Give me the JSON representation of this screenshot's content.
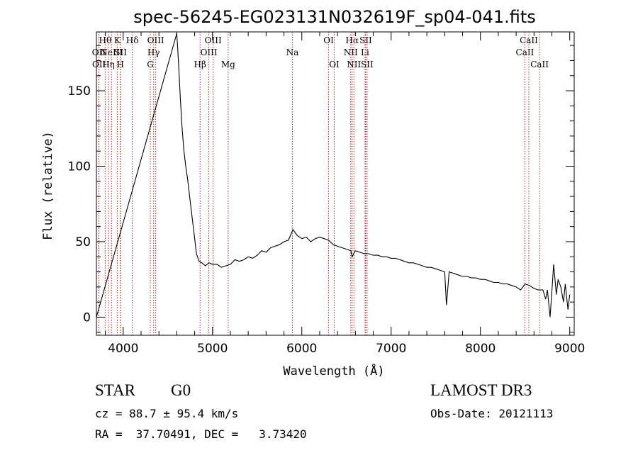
{
  "chart_data": {
    "type": "line",
    "title": "spec-56245-EG023131N032619F_sp04-041.fits",
    "xlabel": "Wavelength (Å)",
    "ylabel": "Flux (relative)",
    "xlim": [
      3700,
      9050
    ],
    "ylim": [
      -12,
      189
    ],
    "x_ticks": [
      4000,
      5000,
      6000,
      7000,
      8000,
      9000
    ],
    "y_ticks": [
      0,
      50,
      100,
      150
    ],
    "x": [
      3700,
      4600,
      4620,
      4640,
      4660,
      4680,
      4700,
      4720,
      4740,
      4760,
      4780,
      4800,
      4820,
      4850,
      4880,
      4920,
      4960,
      5000,
      5050,
      5100,
      5150,
      5200,
      5250,
      5300,
      5350,
      5400,
      5450,
      5500,
      5550,
      5600,
      5650,
      5700,
      5750,
      5800,
      5850,
      5900,
      5950,
      6000,
      6050,
      6100,
      6150,
      6200,
      6250,
      6300,
      6350,
      6400,
      6450,
      6500,
      6550,
      6563,
      6600,
      6650,
      6700,
      6750,
      6800,
      6850,
      6900,
      6950,
      7000,
      7050,
      7100,
      7150,
      7200,
      7250,
      7300,
      7350,
      7400,
      7450,
      7500,
      7550,
      7600,
      7620,
      7650,
      7700,
      7750,
      7800,
      7850,
      7900,
      7950,
      8000,
      8050,
      8100,
      8150,
      8200,
      8250,
      8300,
      8350,
      8400,
      8450,
      8500,
      8550,
      8600,
      8650,
      8700,
      8730,
      8750,
      8780,
      8800,
      8820,
      8850,
      8870,
      8900,
      8930,
      8950,
      8980,
      9000
    ],
    "values": [
      0,
      188,
      168,
      145,
      125,
      110,
      100,
      92,
      82,
      72,
      62,
      52,
      42,
      37,
      36,
      34,
      36,
      35,
      35,
      33,
      34,
      35,
      38,
      37,
      38,
      40,
      39,
      41,
      44,
      43,
      46,
      47,
      48,
      50,
      51,
      58,
      54,
      52,
      53,
      50,
      52,
      53,
      52,
      51,
      48,
      47,
      46,
      45,
      44,
      40,
      44,
      43,
      42,
      42,
      41,
      41,
      40,
      40,
      39,
      39,
      38,
      37,
      36,
      36,
      35,
      34,
      33,
      33,
      32,
      31,
      30,
      8,
      30,
      29,
      28,
      27,
      27,
      26,
      26,
      25,
      25,
      24,
      23,
      23,
      22,
      22,
      21,
      20,
      18,
      22,
      21,
      19,
      18,
      18,
      12,
      18,
      0,
      17,
      35,
      15,
      25,
      20,
      10,
      22,
      5,
      15
    ],
    "lines": [
      {
        "wavelength": 3727,
        "label": "OII",
        "row": 2
      },
      {
        "wavelength": 3729,
        "label": "OII",
        "row": 3
      },
      {
        "wavelength": 3798,
        "label": "Hθ",
        "row": 1
      },
      {
        "wavelength": 3835,
        "label": "Hη",
        "row": 3
      },
      {
        "wavelength": 3869,
        "label": "NeIII",
        "row": 2
      },
      {
        "wavelength": 3933,
        "label": "K",
        "row": 1
      },
      {
        "wavelength": 3968,
        "label": "H",
        "row": 3
      },
      {
        "wavelength": 3971,
        "label": "SII",
        "row": 2
      },
      {
        "wavelength": 4102,
        "label": "Hδ",
        "row": 1
      },
      {
        "wavelength": 4304,
        "label": "G",
        "row": 3
      },
      {
        "wavelength": 4341,
        "label": "Hγ",
        "row": 2
      },
      {
        "wavelength": 4364,
        "label": "OIII",
        "row": 1
      },
      {
        "wavelength": 4861,
        "label": "Hβ",
        "row": 3
      },
      {
        "wavelength": 4959,
        "label": "OIII",
        "row": 2
      },
      {
        "wavelength": 5007,
        "label": "OIII",
        "row": 1
      },
      {
        "wavelength": 5175,
        "label": "Mg",
        "row": 3
      },
      {
        "wavelength": 5894,
        "label": "Na",
        "row": 2
      },
      {
        "wavelength": 6300,
        "label": "OI",
        "row": 1
      },
      {
        "wavelength": 6363,
        "label": "OI",
        "row": 3
      },
      {
        "wavelength": 6548,
        "label": "NII",
        "row": 2
      },
      {
        "wavelength": 6563,
        "label": "Hα",
        "row": 1
      },
      {
        "wavelength": 6583,
        "label": "NII",
        "row": 3
      },
      {
        "wavelength": 6708,
        "label": "Li",
        "row": 2
      },
      {
        "wavelength": 6716,
        "label": "SII",
        "row": 1
      },
      {
        "wavelength": 6731,
        "label": "SII",
        "row": 3
      },
      {
        "wavelength": 8498,
        "label": "CaII",
        "row": 2
      },
      {
        "wavelength": 8542,
        "label": "CaII",
        "row": 1
      },
      {
        "wavelength": 8662,
        "label": "CaII",
        "row": 3
      }
    ],
    "grid": false,
    "line_color": "#000000",
    "marker_color": "#b22222"
  },
  "info": {
    "class": "STAR",
    "subclass": "G0",
    "survey": "LAMOST DR3",
    "cz": "cz = 88.7 ± 95.4 km/s",
    "obs_date": "Obs-Date: 20121113",
    "coords": "RA =  37.70491, DEC =   3.73420"
  }
}
